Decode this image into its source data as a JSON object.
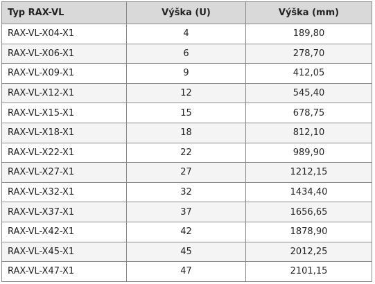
{
  "table": {
    "header": [
      "Typ RAX-VL",
      "Výška (U)",
      "Výška (mm)"
    ],
    "rows": [
      [
        "RAX-VL-X04-X1",
        4,
        "189,80"
      ],
      [
        "RAX-VL-X06-X1",
        6,
        "278,70"
      ],
      [
        "RAX-VL-X09-X1",
        9,
        "412,05"
      ],
      [
        "RAX-VL-X12-X1",
        12,
        "545,40"
      ],
      [
        "RAX-VL-X15-X1",
        15,
        "678,75"
      ],
      [
        "RAX-VL-X18-X1",
        18,
        "812,10"
      ],
      [
        "RAX-VL-X22-X1",
        22,
        "989,90"
      ],
      [
        "RAX-VL-X27-X1",
        27,
        "1212,15"
      ],
      [
        "RAX-VL-X32-X1",
        32,
        "1434,40"
      ],
      [
        "RAX-VL-X37-X1",
        37,
        "1656,65"
      ],
      [
        "RAX-VL-X42-X1",
        42,
        "1878,90"
      ],
      [
        "RAX-VL-X45-X1",
        45,
        "2012,25"
      ],
      [
        "RAX-VL-X47-X1",
        47,
        "2101,15"
      ]
    ]
  }
}
